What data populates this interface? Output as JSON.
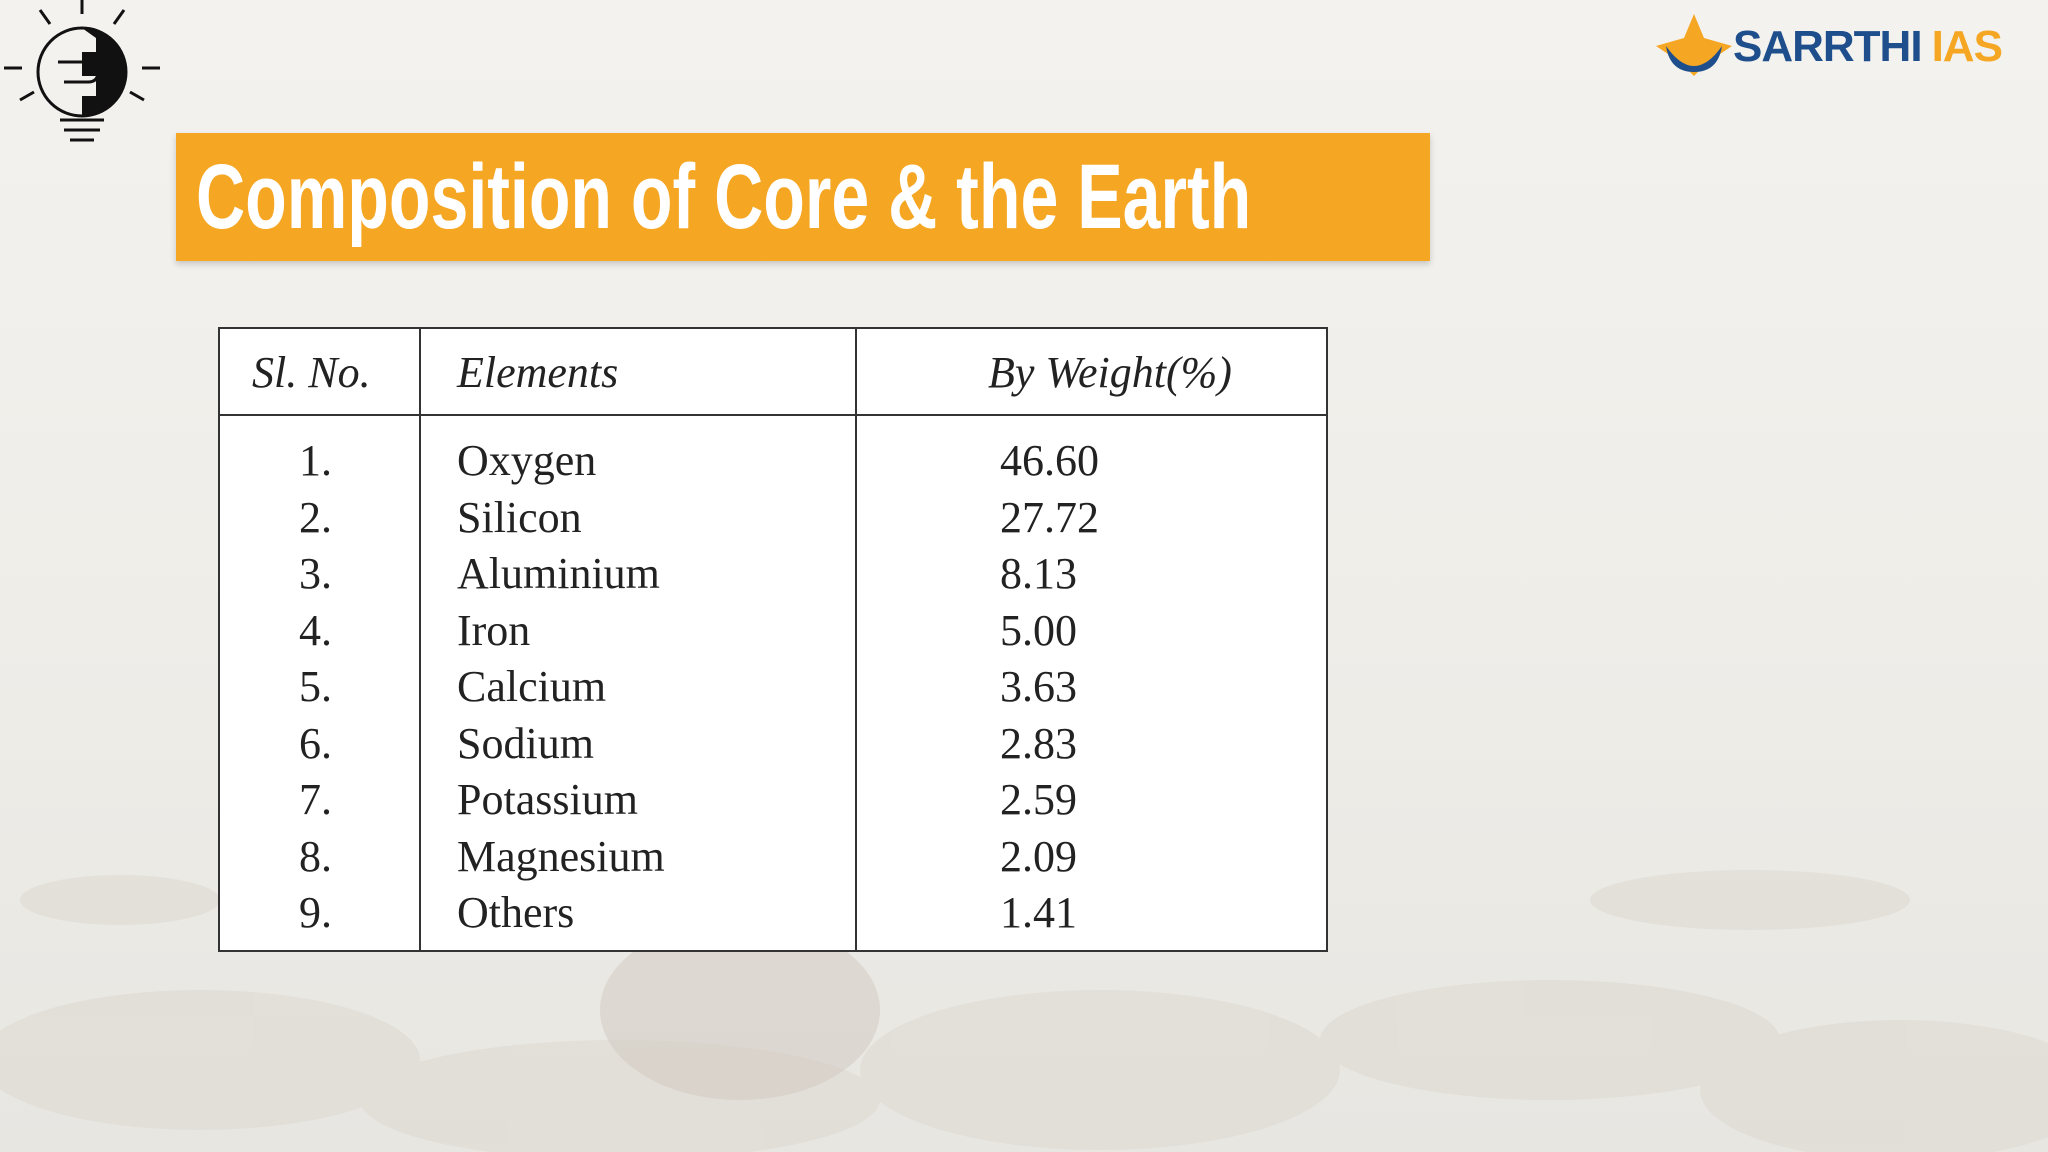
{
  "brand": {
    "name": "SARRTHI",
    "suffix": "IAS"
  },
  "title": "Composition of Core & the Earth",
  "table": {
    "headers": [
      "Sl. No.",
      "Elements",
      "By Weight(%)"
    ],
    "rows": [
      [
        "1.",
        "Oxygen",
        "46.60"
      ],
      [
        "2.",
        "Silicon",
        "27.72"
      ],
      [
        "3.",
        "Aluminium",
        "8.13"
      ],
      [
        "4.",
        "Iron",
        "5.00"
      ],
      [
        "5.",
        "Calcium",
        "3.63"
      ],
      [
        "6.",
        "Sodium",
        "2.83"
      ],
      [
        "7.",
        "Potassium",
        "2.59"
      ],
      [
        "8.",
        "Magnesium",
        "2.09"
      ],
      [
        "9.",
        "Others",
        "1.41"
      ]
    ]
  }
}
